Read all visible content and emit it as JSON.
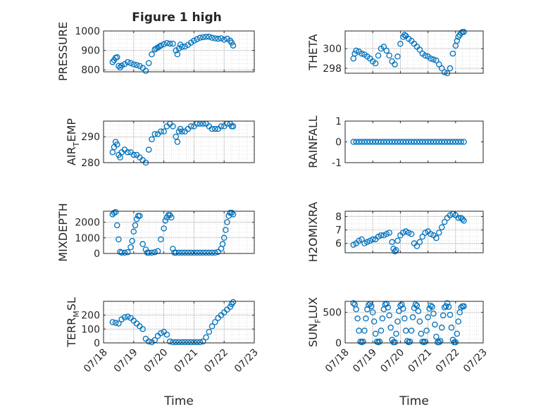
{
  "figure": {
    "title": "Figure 1 high",
    "marker_color": "#0072BD"
  },
  "chart_data": [
    {
      "id": "pressure",
      "type": "scatter",
      "ylabel": "PRESSURE",
      "ylim": [
        790,
        1000
      ],
      "yticks": [
        800,
        900,
        1000
      ],
      "ytick_labels": [
        "800",
        "900",
        "1000"
      ],
      "xlim": [
        0,
        5
      ],
      "grid": true,
      "show_xticks": false,
      "x": [
        0.3,
        0.35,
        0.4,
        0.45,
        0.5,
        0.55,
        0.6,
        0.7,
        0.8,
        0.9,
        1.0,
        1.1,
        1.2,
        1.3,
        1.4,
        1.5,
        1.6,
        1.7,
        1.75,
        1.8,
        1.85,
        1.9,
        2.0,
        2.1,
        2.2,
        2.3,
        2.4,
        2.45,
        2.5,
        2.55,
        2.6,
        2.7,
        2.8,
        2.9,
        3.0,
        3.1,
        3.2,
        3.3,
        3.4,
        3.5,
        3.6,
        3.7,
        3.8,
        3.9,
        4.0,
        4.1,
        4.2,
        4.25,
        4.3
      ],
      "y": [
        840,
        850,
        862,
        865,
        820,
        812,
        822,
        830,
        840,
        835,
        828,
        825,
        820,
        810,
        795,
        835,
        880,
        905,
        910,
        915,
        920,
        925,
        932,
        938,
        935,
        935,
        900,
        880,
        910,
        930,
        918,
        920,
        928,
        940,
        950,
        958,
        965,
        968,
        970,
        970,
        965,
        962,
        960,
        962,
        955,
        960,
        950,
        940,
        925
      ]
    },
    {
      "id": "theta",
      "type": "scatter",
      "ylabel": "THETA",
      "ylim": [
        297.5,
        301.8
      ],
      "yticks": [
        298,
        300
      ],
      "ytick_labels": [
        "298",
        "300"
      ],
      "xlim": [
        0,
        5
      ],
      "grid": true,
      "show_xticks": false,
      "x": [
        0.3,
        0.35,
        0.4,
        0.5,
        0.6,
        0.7,
        0.8,
        0.9,
        1.0,
        1.1,
        1.2,
        1.3,
        1.4,
        1.5,
        1.6,
        1.7,
        1.8,
        1.9,
        2.0,
        2.1,
        2.15,
        2.2,
        2.3,
        2.4,
        2.5,
        2.6,
        2.7,
        2.8,
        2.9,
        3.0,
        3.1,
        3.2,
        3.3,
        3.4,
        3.5,
        3.6,
        3.7,
        3.8,
        3.9,
        4.0,
        4.05,
        4.1,
        4.15,
        4.2,
        4.25,
        4.3
      ],
      "y": [
        299.0,
        299.5,
        299.8,
        299.7,
        299.5,
        299.4,
        299.2,
        299.0,
        298.7,
        298.5,
        299.3,
        300.0,
        300.2,
        299.8,
        299.3,
        298.7,
        298.4,
        299.2,
        300.5,
        301.2,
        301.4,
        301.3,
        301.0,
        300.8,
        300.5,
        300.2,
        299.9,
        299.5,
        299.3,
        299.2,
        299.0,
        298.9,
        298.8,
        298.4,
        298.0,
        297.6,
        297.5,
        298.0,
        299.5,
        300.3,
        300.8,
        301.2,
        301.4,
        301.6,
        301.7,
        301.7
      ]
    },
    {
      "id": "air_temp",
      "type": "scatter",
      "ylabel_parts": [
        "AIR",
        "T",
        "EMP"
      ],
      "ylim": [
        280,
        296
      ],
      "yticks": [
        280,
        290
      ],
      "ytick_labels": [
        "280",
        "290"
      ],
      "xlim": [
        0,
        5
      ],
      "grid": true,
      "show_xticks": false,
      "x": [
        0.3,
        0.35,
        0.4,
        0.45,
        0.5,
        0.55,
        0.6,
        0.7,
        0.8,
        0.9,
        1.0,
        1.1,
        1.2,
        1.3,
        1.4,
        1.5,
        1.6,
        1.7,
        1.8,
        1.9,
        2.0,
        2.1,
        2.2,
        2.3,
        2.4,
        2.45,
        2.5,
        2.55,
        2.6,
        2.7,
        2.8,
        2.9,
        3.0,
        3.1,
        3.2,
        3.3,
        3.4,
        3.5,
        3.6,
        3.7,
        3.8,
        3.9,
        4.0,
        4.1,
        4.2,
        4.25,
        4.3
      ],
      "y": [
        284,
        286,
        288,
        287,
        283,
        282,
        284,
        285,
        284,
        284,
        283,
        283,
        282,
        281,
        280,
        285,
        289,
        291,
        291,
        292,
        292,
        294,
        295,
        294,
        290,
        288,
        292,
        293,
        292,
        292,
        293,
        294,
        294,
        295,
        295,
        295,
        295,
        294,
        293,
        293,
        293,
        294,
        294,
        295,
        295,
        294,
        294
      ]
    },
    {
      "id": "rainfall",
      "type": "scatter",
      "ylabel": "RAINFALL",
      "ylim": [
        -1,
        1
      ],
      "yticks": [
        -1,
        0,
        1
      ],
      "ytick_labels": [
        "-1",
        "0",
        "1"
      ],
      "xlim": [
        0,
        5
      ],
      "grid": false,
      "show_xticks": false,
      "x": [
        0.3,
        0.4,
        0.5,
        0.6,
        0.7,
        0.8,
        0.9,
        1.0,
        1.1,
        1.2,
        1.3,
        1.4,
        1.5,
        1.6,
        1.7,
        1.8,
        1.9,
        2.0,
        2.1,
        2.2,
        2.3,
        2.4,
        2.5,
        2.6,
        2.7,
        2.8,
        2.9,
        3.0,
        3.1,
        3.2,
        3.3,
        3.4,
        3.5,
        3.6,
        3.7,
        3.8,
        3.9,
        4.0,
        4.1,
        4.2,
        4.3
      ],
      "y": [
        0,
        0,
        0,
        0,
        0,
        0,
        0,
        0,
        0,
        0,
        0,
        0,
        0,
        0,
        0,
        0,
        0,
        0,
        0,
        0,
        0,
        0,
        0,
        0,
        0,
        0,
        0,
        0,
        0,
        0,
        0,
        0,
        0,
        0,
        0,
        0,
        0,
        0,
        0,
        0,
        0
      ]
    },
    {
      "id": "mixdepth",
      "type": "scatter",
      "ylabel": "MIXDEPTH",
      "ylim": [
        0,
        2700
      ],
      "yticks": [
        0,
        1000,
        2000
      ],
      "ytick_labels": [
        "0",
        "1000",
        "2000"
      ],
      "xlim": [
        0,
        5
      ],
      "grid": true,
      "show_xticks": false,
      "x": [
        0.3,
        0.35,
        0.4,
        0.45,
        0.5,
        0.55,
        0.6,
        0.7,
        0.8,
        0.9,
        0.95,
        1.0,
        1.05,
        1.1,
        1.15,
        1.2,
        1.3,
        1.4,
        1.45,
        1.5,
        1.6,
        1.7,
        1.8,
        1.9,
        2.0,
        2.05,
        2.1,
        2.15,
        2.2,
        2.25,
        2.3,
        2.35,
        2.4,
        2.5,
        2.6,
        2.7,
        2.8,
        2.9,
        3.0,
        3.1,
        3.2,
        3.3,
        3.4,
        3.5,
        3.6,
        3.7,
        3.8,
        3.9,
        3.95,
        4.0,
        4.05,
        4.1,
        4.15,
        4.2,
        4.25,
        4.3
      ],
      "y": [
        2500,
        2600,
        2650,
        1800,
        900,
        100,
        50,
        50,
        80,
        400,
        800,
        1400,
        1800,
        2200,
        2400,
        2400,
        600,
        250,
        50,
        50,
        50,
        80,
        150,
        900,
        1600,
        2100,
        2300,
        2450,
        2450,
        2300,
        300,
        50,
        50,
        50,
        50,
        50,
        50,
        50,
        50,
        50,
        50,
        50,
        50,
        50,
        50,
        50,
        100,
        300,
        600,
        1000,
        1500,
        2000,
        2400,
        2600,
        2600,
        2500
      ]
    },
    {
      "id": "h2omixra",
      "type": "scatter",
      "ylabel": "H2OMIXRA",
      "ylim": [
        5.3,
        8.4
      ],
      "yticks": [
        6,
        7,
        8
      ],
      "ytick_labels": [
        "6",
        "7",
        "8"
      ],
      "xlim": [
        0,
        5
      ],
      "grid": true,
      "show_xticks": false,
      "x": [
        0.3,
        0.4,
        0.5,
        0.6,
        0.7,
        0.8,
        0.9,
        1.0,
        1.1,
        1.2,
        1.3,
        1.4,
        1.5,
        1.6,
        1.7,
        1.75,
        1.8,
        1.85,
        1.9,
        2.0,
        2.1,
        2.2,
        2.3,
        2.4,
        2.5,
        2.6,
        2.7,
        2.8,
        2.9,
        3.0,
        3.1,
        3.2,
        3.3,
        3.4,
        3.5,
        3.6,
        3.7,
        3.8,
        3.9,
        4.0,
        4.1,
        4.2,
        4.25,
        4.3
      ],
      "y": [
        5.9,
        6.0,
        6.2,
        6.3,
        6.0,
        6.1,
        6.2,
        6.3,
        6.3,
        6.5,
        6.6,
        6.6,
        6.7,
        6.8,
        6.1,
        5.6,
        5.4,
        5.5,
        6.2,
        6.6,
        6.8,
        6.9,
        6.8,
        6.7,
        6.0,
        5.8,
        6.1,
        6.5,
        6.8,
        6.9,
        6.7,
        6.6,
        6.4,
        6.8,
        7.2,
        7.6,
        7.9,
        8.1,
        8.2,
        8.1,
        7.9,
        7.9,
        7.8,
        7.7
      ]
    },
    {
      "id": "terr_msl",
      "type": "scatter",
      "ylabel_parts": [
        "TERR",
        "M",
        "SL"
      ],
      "ylim": [
        0,
        300
      ],
      "yticks": [
        0,
        100,
        200
      ],
      "ytick_labels": [
        "0",
        "100",
        "200"
      ],
      "xlim": [
        0,
        5
      ],
      "grid": true,
      "show_xticks": true,
      "xticks": [
        0,
        1,
        2,
        3,
        4,
        5
      ],
      "xtick_labels": [
        "07/18",
        "07/19",
        "07/20",
        "07/21",
        "07/22",
        "07/23"
      ],
      "xlabel": "Time",
      "x": [
        0.3,
        0.4,
        0.5,
        0.6,
        0.7,
        0.8,
        0.9,
        1.0,
        1.1,
        1.2,
        1.3,
        1.4,
        1.5,
        1.6,
        1.7,
        1.8,
        1.9,
        2.0,
        2.1,
        2.2,
        2.3,
        2.4,
        2.5,
        2.6,
        2.7,
        2.8,
        2.9,
        3.0,
        3.1,
        3.2,
        3.3,
        3.4,
        3.5,
        3.6,
        3.7,
        3.8,
        3.9,
        4.0,
        4.1,
        4.2,
        4.25,
        4.3
      ],
      "y": [
        150,
        145,
        140,
        170,
        185,
        190,
        180,
        160,
        140,
        120,
        100,
        30,
        10,
        5,
        20,
        50,
        70,
        80,
        60,
        10,
        5,
        5,
        5,
        5,
        5,
        5,
        5,
        5,
        5,
        5,
        10,
        40,
        80,
        120,
        150,
        180,
        200,
        220,
        240,
        260,
        280,
        295
      ]
    },
    {
      "id": "sun_flux",
      "type": "scatter",
      "ylabel_parts": [
        "SUN",
        "F",
        "LUX"
      ],
      "ylim": [
        0,
        680
      ],
      "yticks": [
        0,
        500
      ],
      "ytick_labels": [
        "0",
        "500"
      ],
      "xlim": [
        0,
        5
      ],
      "grid": true,
      "show_xticks": true,
      "xticks": [
        0,
        1,
        2,
        3,
        4,
        5
      ],
      "xtick_labels": [
        "07/18",
        "07/19",
        "07/20",
        "07/21",
        "07/22",
        "07/23"
      ],
      "xlabel": "Time",
      "x": [
        0.3,
        0.35,
        0.4,
        0.45,
        0.5,
        0.55,
        0.6,
        0.65,
        0.7,
        0.75,
        0.8,
        0.85,
        0.9,
        0.95,
        1.0,
        1.05,
        1.1,
        1.15,
        1.2,
        1.25,
        1.3,
        1.35,
        1.4,
        1.45,
        1.5,
        1.55,
        1.6,
        1.65,
        1.7,
        1.75,
        1.8,
        1.85,
        1.9,
        1.95,
        2.0,
        2.05,
        2.1,
        2.15,
        2.2,
        2.25,
        2.3,
        2.35,
        2.4,
        2.45,
        2.5,
        2.55,
        2.6,
        2.65,
        2.7,
        2.75,
        2.8,
        2.85,
        2.9,
        2.95,
        3.0,
        3.05,
        3.1,
        3.15,
        3.2,
        3.25,
        3.3,
        3.35,
        3.4,
        3.45,
        3.5,
        3.55,
        3.6,
        3.65,
        3.7,
        3.75,
        3.8,
        3.85,
        3.9,
        3.95,
        4.0,
        4.05,
        4.1,
        4.15,
        4.2,
        4.25,
        4.3
      ],
      "y": [
        650,
        630,
        550,
        400,
        200,
        20,
        10,
        20,
        200,
        400,
        550,
        620,
        640,
        600,
        500,
        350,
        150,
        20,
        10,
        20,
        200,
        400,
        550,
        630,
        640,
        580,
        450,
        250,
        50,
        10,
        10,
        150,
        350,
        520,
        610,
        630,
        560,
        400,
        200,
        30,
        10,
        20,
        200,
        420,
        570,
        630,
        610,
        520,
        350,
        150,
        20,
        10,
        20,
        200,
        420,
        560,
        610,
        590,
        480,
        300,
        100,
        10,
        10,
        30,
        250,
        450,
        580,
        600,
        650,
        590,
        460,
        250,
        50,
        10,
        10,
        150,
        350,
        500,
        580,
        600,
        600
      ]
    }
  ]
}
